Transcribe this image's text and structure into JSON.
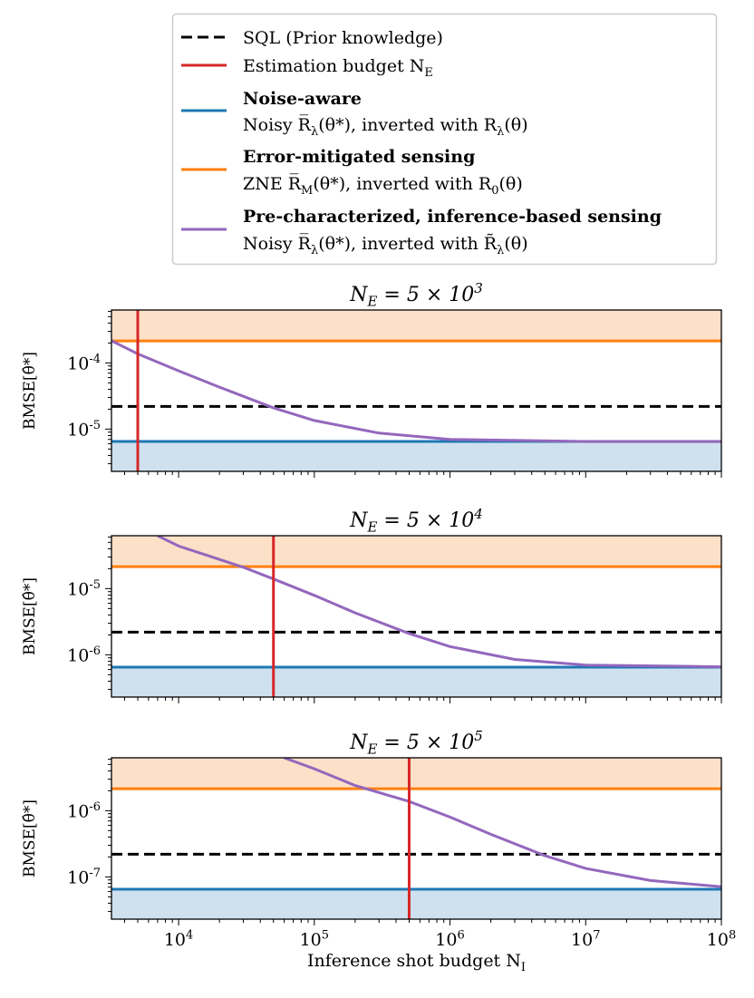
{
  "legend": {
    "entries": [
      {
        "key": "sql",
        "color": "#000000",
        "dashed": true,
        "line1": "SQL (Prior knowledge)",
        "line2": ""
      },
      {
        "key": "budget",
        "color": "#d62728",
        "dashed": false,
        "line1": "Estimation budget N_E",
        "line2": ""
      },
      {
        "key": "noise_aware",
        "color": "#1f77b4",
        "dashed": false,
        "line1": "Noise-aware",
        "line2": "Noisy R̅_λ(θ*), inverted with R_λ(θ)"
      },
      {
        "key": "error_mitigated",
        "color": "#ff7f0e",
        "dashed": false,
        "line1": "Error-mitigated sensing",
        "line2": "ZNE R̅_M(θ*), inverted with R_0(θ)"
      },
      {
        "key": "pre_characterized",
        "color": "#9467bd",
        "dashed": false,
        "line1": "Pre-characterized, inference-based sensing",
        "line2": "Noisy R̅_λ(θ*), inverted with R̃_λ(θ)"
      }
    ]
  },
  "colors": {
    "sql": "#000000",
    "budget": "#d62728",
    "noise_aware": "#1f77b4",
    "error_mitigated": "#ff7f0e",
    "pre_characterized": "#9467bd",
    "orange_fill": "#fde0c8",
    "blue_fill": "#cfe1ee"
  },
  "chart_data": [
    {
      "type": "line",
      "title": "N_E = 5 × 10^3",
      "xlabel": "",
      "ylabel": "BMSE[θ̂*]",
      "xscale": "log",
      "yscale": "log",
      "xlim": [
        3200,
        100000000
      ],
      "ylim": [
        2.3e-06,
        0.00063
      ],
      "xticks": [],
      "yticks": [
        "10^-4",
        "10^-5"
      ],
      "budget_NE": 5000,
      "sql": 2.2e-05,
      "noise_aware": 6.5e-06,
      "error_mitigated": 0.000215,
      "pre_characterized": {
        "x": [
          3200,
          5000,
          10000,
          20000,
          50000,
          100000,
          300000,
          1000000,
          10000000,
          100000000
        ],
        "y": [
          0.000216,
          0.000137,
          7.6e-05,
          4.3e-05,
          2.1e-05,
          1.35e-05,
          8.7e-06,
          7e-06,
          6.5e-06,
          6.5e-06
        ]
      }
    },
    {
      "type": "line",
      "title": "N_E = 5 × 10^4",
      "xlabel": "",
      "ylabel": "BMSE[θ̂*]",
      "xscale": "log",
      "yscale": "log",
      "xlim": [
        3200,
        100000000
      ],
      "ylim": [
        2.3e-07,
        6.3e-05
      ],
      "xticks": [],
      "yticks": [
        "10^-5",
        "10^-6"
      ],
      "budget_NE": 50000,
      "sql": 2.2e-06,
      "noise_aware": 6.5e-07,
      "error_mitigated": 2.15e-05,
      "pre_characterized": {
        "x": [
          7000,
          10000,
          30000,
          50000,
          100000,
          200000,
          500000,
          1000000,
          3000000,
          10000000,
          100000000
        ],
        "y": [
          6.3e-05,
          4.4e-05,
          2.1e-05,
          1.4e-05,
          7.9e-06,
          4.3e-06,
          2.1e-06,
          1.33e-06,
          8.5e-07,
          7e-07,
          6.6e-07
        ]
      }
    },
    {
      "type": "line",
      "title": "N_E = 5 × 10^5",
      "xlabel": "Inference shot budget N_I",
      "ylabel": "BMSE[θ̂*]",
      "xscale": "log",
      "yscale": "log",
      "xlim": [
        3200,
        100000000
      ],
      "ylim": [
        2.3e-08,
        6.3e-06
      ],
      "xticks": [
        "10^4",
        "10^5",
        "10^6",
        "10^7",
        "10^8"
      ],
      "yticks": [
        "10^-6",
        "10^-7"
      ],
      "budget_NE": 500000,
      "sql": 2.2e-07,
      "noise_aware": 6.5e-08,
      "error_mitigated": 2.15e-06,
      "pre_characterized": {
        "x": [
          60000,
          100000,
          200000,
          500000,
          1000000,
          2000000,
          5000000,
          10000000,
          30000000,
          100000000
        ],
        "y": [
          6.3e-06,
          4.3e-06,
          2.4e-06,
          1.38e-06,
          8e-07,
          4.4e-07,
          2.1e-07,
          1.34e-07,
          8.8e-08,
          7.1e-08
        ]
      }
    }
  ]
}
